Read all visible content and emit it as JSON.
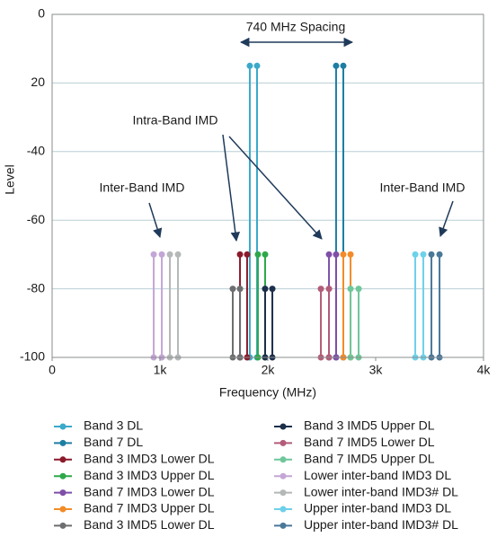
{
  "chart_data": {
    "type": "stem",
    "xlabel": "Frequency (MHz)",
    "ylabel": "Level",
    "xlim": [
      0,
      4000
    ],
    "xticks": [
      0,
      {
        "value": 1000,
        "label": "1k"
      },
      {
        "value": 2000,
        "label": "2k"
      },
      {
        "value": 3000,
        "label": "3k"
      },
      {
        "value": 4000,
        "label": "4k"
      }
    ],
    "ylim": [
      -100,
      0
    ],
    "yticks": [
      0,
      {
        "value": -20,
        "label": "20"
      },
      -40,
      -60,
      -80,
      -100
    ],
    "grid": true,
    "annotations": [
      "740 MHz Spacing",
      "Intra-Band IMD",
      "Inter-Band IMD",
      "Inter-Band IMD"
    ],
    "series": [
      {
        "name": "Band 3 DL",
        "color": "#3ba9c9",
        "x": [
          1833,
          1900
        ],
        "values": [
          -15,
          -15
        ]
      },
      {
        "name": "Band 7 DL",
        "color": "#1d7ea3",
        "x": [
          2633,
          2700
        ],
        "values": [
          -15,
          -15
        ]
      },
      {
        "name": "Band 3 IMD3 Lower DL",
        "color": "#8b1a2b",
        "x": [
          1742,
          1808
        ],
        "values": [
          -70,
          -70
        ]
      },
      {
        "name": "Band 3 IMD3 Upper DL",
        "color": "#2ea84a",
        "x": [
          1908,
          1975
        ],
        "values": [
          -70,
          -70
        ]
      },
      {
        "name": "Band 7 IMD3 Lower DL",
        "color": "#7f4fa8",
        "x": [
          2567,
          2633
        ],
        "values": [
          -70,
          -70
        ]
      },
      {
        "name": "Band 7 IMD3 Upper DL",
        "color": "#f28c28",
        "x": [
          2700,
          2767
        ],
        "values": [
          -70,
          -70
        ]
      },
      {
        "name": "Band 3 IMD5 Lower DL",
        "color": "#6d6e70",
        "x": [
          1675,
          1742
        ],
        "values": [
          -80,
          -80
        ]
      },
      {
        "name": "Band 3 IMD5 Upper DL",
        "color": "#1b2f4a",
        "x": [
          1975,
          2042
        ],
        "values": [
          -80,
          -80
        ]
      },
      {
        "name": "Band 7 IMD5 Lower DL",
        "color": "#b35c78",
        "x": [
          2492,
          2567
        ],
        "values": [
          -80,
          -80
        ]
      },
      {
        "name": "Band 7 IMD5 Upper DL",
        "color": "#6fc79a",
        "x": [
          2767,
          2842
        ],
        "values": [
          -80,
          -80
        ]
      },
      {
        "name": "Lower inter-band IMD3 DL",
        "color": "#c4a6d6",
        "x": [
          942,
          1017
        ],
        "values": [
          -70,
          -70
        ]
      },
      {
        "name": "Lower inter-band IMD3# DL",
        "color": "#b5b8b8",
        "x": [
          1092,
          1167
        ],
        "values": [
          -70,
          -70
        ]
      },
      {
        "name": "Upper inter-band IMD3 DL",
        "color": "#6ed1ea",
        "x": [
          3367,
          3442
        ],
        "values": [
          -70,
          -70
        ]
      },
      {
        "name": "Upper inter-band IMD3# DL",
        "color": "#4a7899",
        "x": [
          3517,
          3592
        ],
        "values": [
          -70,
          -70
        ]
      }
    ]
  }
}
